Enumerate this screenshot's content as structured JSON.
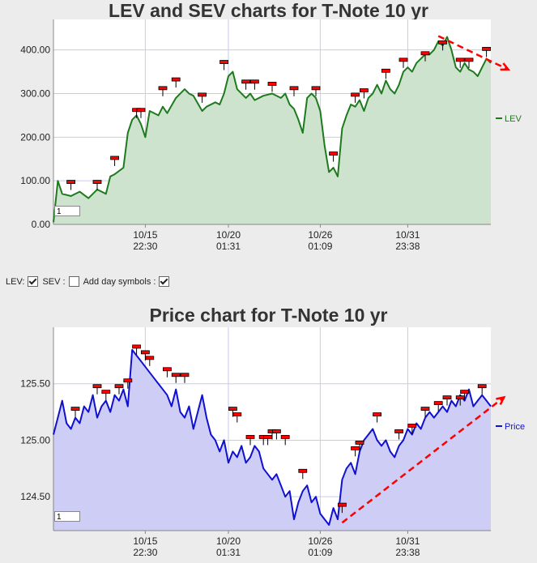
{
  "lev_chart": {
    "title": "LEV and SEV charts for T-Note 10 yr",
    "zoom_value": "1",
    "legend_label": "LEV",
    "colors": {
      "line": "#1e7a1e",
      "fill": "#cde3cd",
      "marker": "#ff0000",
      "trend": "#ff0000"
    }
  },
  "price_chart": {
    "title": "Price chart for T-Note 10 yr",
    "zoom_value": "1",
    "legend_label": "Price",
    "colors": {
      "line": "#1010d0",
      "fill": "#cdcdf5",
      "marker": "#ff0000",
      "trend": "#ff0000"
    }
  },
  "controls": {
    "lev_label": "LEV:",
    "sev_label": "SEV :",
    "day_symbols_label": "Add day symbols :",
    "lev_checked": true,
    "sev_checked": false,
    "day_symbols_checked": true
  },
  "chart_data": [
    {
      "type": "area",
      "title": "LEV and SEV charts for T-Note 10 yr",
      "ylim": [
        0,
        470
      ],
      "y_ticks": [
        "0.00",
        "100.00",
        "200.00",
        "300.00",
        "400.00"
      ],
      "y_tick_values": [
        0,
        100,
        200,
        300,
        400
      ],
      "x_ticks": [
        {
          "date": "10/15",
          "time": "22:30",
          "t": 0.21
        },
        {
          "date": "10/20",
          "time": "01:31",
          "t": 0.4
        },
        {
          "date": "10/26",
          "time": "01:09",
          "t": 0.61
        },
        {
          "date": "10/31",
          "time": "23:38",
          "t": 0.81
        }
      ],
      "series": [
        {
          "name": "LEV",
          "t": [
            0.0,
            0.01,
            0.02,
            0.04,
            0.06,
            0.08,
            0.1,
            0.12,
            0.13,
            0.14,
            0.16,
            0.17,
            0.18,
            0.19,
            0.2,
            0.21,
            0.22,
            0.24,
            0.25,
            0.26,
            0.28,
            0.3,
            0.31,
            0.32,
            0.34,
            0.35,
            0.37,
            0.38,
            0.39,
            0.4,
            0.41,
            0.42,
            0.44,
            0.45,
            0.46,
            0.48,
            0.5,
            0.52,
            0.53,
            0.54,
            0.55,
            0.56,
            0.57,
            0.58,
            0.59,
            0.6,
            0.61,
            0.62,
            0.63,
            0.64,
            0.65,
            0.66,
            0.67,
            0.68,
            0.69,
            0.7,
            0.71,
            0.72,
            0.73,
            0.74,
            0.75,
            0.76,
            0.77,
            0.78,
            0.79,
            0.8,
            0.81,
            0.82,
            0.83,
            0.84,
            0.85,
            0.86,
            0.87,
            0.88,
            0.89,
            0.9,
            0.91,
            0.92,
            0.93,
            0.94,
            0.95,
            0.96,
            0.97,
            0.98,
            0.99,
            1.0
          ],
          "values": [
            5,
            100,
            70,
            65,
            75,
            60,
            80,
            70,
            110,
            115,
            130,
            210,
            240,
            250,
            230,
            200,
            260,
            250,
            270,
            255,
            290,
            310,
            300,
            295,
            260,
            270,
            280,
            275,
            300,
            340,
            350,
            310,
            290,
            300,
            285,
            295,
            300,
            290,
            300,
            275,
            265,
            240,
            210,
            290,
            300,
            290,
            260,
            180,
            120,
            130,
            110,
            220,
            250,
            275,
            270,
            285,
            260,
            290,
            300,
            320,
            300,
            330,
            310,
            300,
            320,
            350,
            360,
            350,
            370,
            380,
            390,
            390,
            400,
            420,
            410,
            430,
            400,
            360,
            350,
            370,
            355,
            350,
            340,
            360,
            380,
            370
          ]
        }
      ],
      "event_markers": [
        {
          "t": 0.04,
          "value": 90
        },
        {
          "t": 0.1,
          "value": 90
        },
        {
          "t": 0.14,
          "value": 145
        },
        {
          "t": 0.19,
          "value": 255
        },
        {
          "t": 0.2,
          "value": 255
        },
        {
          "t": 0.25,
          "value": 305
        },
        {
          "t": 0.28,
          "value": 325
        },
        {
          "t": 0.34,
          "value": 290
        },
        {
          "t": 0.39,
          "value": 365
        },
        {
          "t": 0.44,
          "value": 320
        },
        {
          "t": 0.46,
          "value": 320
        },
        {
          "t": 0.5,
          "value": 315
        },
        {
          "t": 0.55,
          "value": 305
        },
        {
          "t": 0.6,
          "value": 305
        },
        {
          "t": 0.64,
          "value": 155
        },
        {
          "t": 0.69,
          "value": 290
        },
        {
          "t": 0.71,
          "value": 300
        },
        {
          "t": 0.76,
          "value": 345
        },
        {
          "t": 0.8,
          "value": 370
        },
        {
          "t": 0.85,
          "value": 385
        },
        {
          "t": 0.89,
          "value": 410
        },
        {
          "t": 0.93,
          "value": 370
        },
        {
          "t": 0.95,
          "value": 370
        },
        {
          "t": 0.99,
          "value": 395
        }
      ],
      "trend_line": {
        "t1": 0.88,
        "v1": 432,
        "t2": 1.04,
        "v2": 355
      }
    },
    {
      "type": "area",
      "title": "Price chart for T-Note 10 yr",
      "ylim": [
        124.2,
        126.0
      ],
      "y_ticks": [
        "124.50",
        "125.00",
        "125.50"
      ],
      "y_tick_values": [
        124.5,
        125.0,
        125.5
      ],
      "x_ticks": [
        {
          "date": "10/15",
          "time": "22:30",
          "t": 0.21
        },
        {
          "date": "10/20",
          "time": "01:31",
          "t": 0.4
        },
        {
          "date": "10/26",
          "time": "01:09",
          "t": 0.61
        },
        {
          "date": "10/31",
          "time": "23:38",
          "t": 0.81
        }
      ],
      "series": [
        {
          "name": "Price",
          "t": [
            0.0,
            0.01,
            0.02,
            0.03,
            0.04,
            0.05,
            0.06,
            0.07,
            0.08,
            0.09,
            0.1,
            0.11,
            0.12,
            0.13,
            0.14,
            0.15,
            0.16,
            0.17,
            0.18,
            0.19,
            0.2,
            0.21,
            0.22,
            0.23,
            0.24,
            0.25,
            0.26,
            0.27,
            0.28,
            0.29,
            0.3,
            0.31,
            0.32,
            0.33,
            0.34,
            0.35,
            0.36,
            0.37,
            0.38,
            0.39,
            0.4,
            0.41,
            0.42,
            0.43,
            0.44,
            0.45,
            0.46,
            0.47,
            0.48,
            0.49,
            0.5,
            0.51,
            0.52,
            0.53,
            0.54,
            0.55,
            0.56,
            0.57,
            0.58,
            0.59,
            0.6,
            0.61,
            0.62,
            0.63,
            0.64,
            0.65,
            0.66,
            0.67,
            0.68,
            0.69,
            0.7,
            0.71,
            0.72,
            0.73,
            0.74,
            0.75,
            0.76,
            0.77,
            0.78,
            0.79,
            0.8,
            0.81,
            0.82,
            0.83,
            0.84,
            0.85,
            0.86,
            0.87,
            0.88,
            0.89,
            0.9,
            0.91,
            0.92,
            0.93,
            0.94,
            0.95,
            0.96,
            0.97,
            0.98,
            0.99,
            1.0
          ],
          "values": [
            125.05,
            125.2,
            125.35,
            125.15,
            125.1,
            125.2,
            125.15,
            125.3,
            125.25,
            125.4,
            125.2,
            125.3,
            125.35,
            125.25,
            125.4,
            125.35,
            125.45,
            125.3,
            125.8,
            125.75,
            125.7,
            125.65,
            125.6,
            125.55,
            125.5,
            125.45,
            125.4,
            125.3,
            125.45,
            125.25,
            125.2,
            125.3,
            125.1,
            125.25,
            125.4,
            125.2,
            125.05,
            125.0,
            124.9,
            125.0,
            124.8,
            124.9,
            124.85,
            124.95,
            124.8,
            124.85,
            124.95,
            124.9,
            124.75,
            124.7,
            124.65,
            124.7,
            124.6,
            124.5,
            124.55,
            124.3,
            124.45,
            124.55,
            124.6,
            124.45,
            124.5,
            124.35,
            124.3,
            124.25,
            124.4,
            124.3,
            124.65,
            124.75,
            124.8,
            124.7,
            124.9,
            125.0,
            125.05,
            125.1,
            125.0,
            124.95,
            125.0,
            124.9,
            124.85,
            124.95,
            125.0,
            125.1,
            125.05,
            125.15,
            125.1,
            125.2,
            125.25,
            125.2,
            125.25,
            125.3,
            125.25,
            125.35,
            125.3,
            125.4,
            125.35,
            125.45,
            125.3,
            125.35,
            125.4,
            125.35,
            125.3
          ]
        }
      ],
      "event_markers": [
        {
          "t": 0.05,
          "value": 125.25
        },
        {
          "t": 0.1,
          "value": 125.45
        },
        {
          "t": 0.12,
          "value": 125.4
        },
        {
          "t": 0.15,
          "value": 125.45
        },
        {
          "t": 0.17,
          "value": 125.5
        },
        {
          "t": 0.19,
          "value": 125.8
        },
        {
          "t": 0.21,
          "value": 125.75
        },
        {
          "t": 0.22,
          "value": 125.7
        },
        {
          "t": 0.26,
          "value": 125.6
        },
        {
          "t": 0.28,
          "value": 125.55
        },
        {
          "t": 0.3,
          "value": 125.55
        },
        {
          "t": 0.41,
          "value": 125.25
        },
        {
          "t": 0.42,
          "value": 125.2
        },
        {
          "t": 0.45,
          "value": 125.0
        },
        {
          "t": 0.48,
          "value": 125.0
        },
        {
          "t": 0.49,
          "value": 125.0
        },
        {
          "t": 0.5,
          "value": 125.05
        },
        {
          "t": 0.51,
          "value": 125.05
        },
        {
          "t": 0.53,
          "value": 125.0
        },
        {
          "t": 0.57,
          "value": 124.7
        },
        {
          "t": 0.66,
          "value": 124.4
        },
        {
          "t": 0.69,
          "value": 124.9
        },
        {
          "t": 0.7,
          "value": 124.95
        },
        {
          "t": 0.74,
          "value": 125.2
        },
        {
          "t": 0.79,
          "value": 125.05
        },
        {
          "t": 0.82,
          "value": 125.1
        },
        {
          "t": 0.85,
          "value": 125.25
        },
        {
          "t": 0.88,
          "value": 125.3
        },
        {
          "t": 0.9,
          "value": 125.35
        },
        {
          "t": 0.93,
          "value": 125.35
        },
        {
          "t": 0.94,
          "value": 125.4
        },
        {
          "t": 0.98,
          "value": 125.45
        }
      ],
      "trend_line": {
        "t1": 0.66,
        "v1": 124.27,
        "t2": 1.03,
        "v2": 125.38
      }
    }
  ]
}
